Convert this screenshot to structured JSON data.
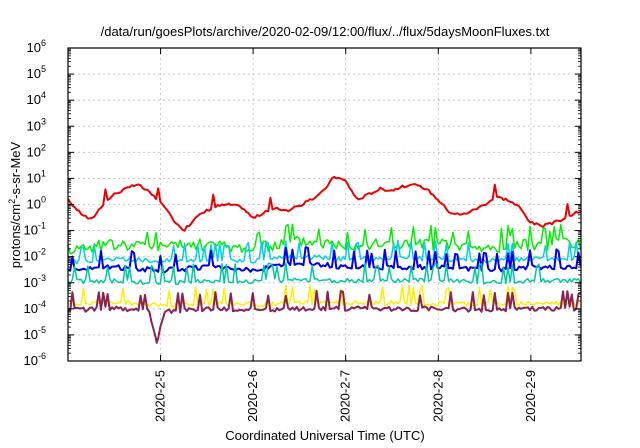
{
  "chart_data": {
    "type": "line",
    "title": "/data/run/goesPlots/archive/2020-02-09/12:00/flux/../flux/5daysMoonFluxes.txt",
    "xlabel": "Coordinated Universal Time (UTC)",
    "ylabel": "protons/cm²-s-sr-MeV",
    "ylabel_main": "protons/cm",
    "ylabel_sup": "2",
    "ylabel_rest": "-s-sr-MeV",
    "y_scale": "log",
    "ylim": [
      1e-06,
      1000000.0
    ],
    "xlim": [
      "2020-02-04 00:00",
      "2020-02-09 13:00"
    ],
    "grid": true,
    "x_ticks": [
      "2020-2-5",
      "2020-2-6",
      "2020-2-7",
      "2020-2-8",
      "2020-2-9"
    ],
    "y_ticks": [
      {
        "base": "10",
        "exp": "-6"
      },
      {
        "base": "10",
        "exp": "-5"
      },
      {
        "base": "10",
        "exp": "-4"
      },
      {
        "base": "10",
        "exp": "-3"
      },
      {
        "base": "10",
        "exp": "-2"
      },
      {
        "base": "10",
        "exp": "-1"
      },
      {
        "base": "10",
        "exp": "0"
      },
      {
        "base": "10",
        "exp": "1"
      },
      {
        "base": "10",
        "exp": "2"
      },
      {
        "base": "10",
        "exp": "3"
      },
      {
        "base": "10",
        "exp": "4"
      },
      {
        "base": "10",
        "exp": "5"
      },
      {
        "base": "10",
        "exp": "6"
      }
    ],
    "series": [
      {
        "color": "#ee0000",
        "width": 2.0,
        "points": [
          [
            "2020-02-04 00:00",
            1.5
          ],
          [
            "2020-02-04 03:00",
            0.5
          ],
          [
            "2020-02-04 06:00",
            0.25
          ],
          [
            "2020-02-04 09:00",
            1.0
          ],
          [
            "2020-02-04 12:00",
            2.5
          ],
          [
            "2020-02-04 15:00",
            4.0
          ],
          [
            "2020-02-04 18:00",
            6.0
          ],
          [
            "2020-02-04 21:00",
            3.0
          ],
          [
            "2020-02-05 00:00",
            1.2
          ],
          [
            "2020-02-05 03:00",
            0.3
          ],
          [
            "2020-02-05 06:00",
            0.1
          ],
          [
            "2020-02-05 09:00",
            0.3
          ],
          [
            "2020-02-05 12:00",
            0.6
          ],
          [
            "2020-02-05 15:00",
            0.9
          ],
          [
            "2020-02-05 18:00",
            1.0
          ],
          [
            "2020-02-05 21:00",
            0.8
          ],
          [
            "2020-02-06 00:00",
            0.3
          ],
          [
            "2020-02-06 03:00",
            0.5
          ],
          [
            "2020-02-06 06:00",
            0.7
          ],
          [
            "2020-02-06 09:00",
            0.6
          ],
          [
            "2020-02-06 12:00",
            0.9
          ],
          [
            "2020-02-06 15:00",
            1.5
          ],
          [
            "2020-02-06 18:00",
            3.0
          ],
          [
            "2020-02-06 21:00",
            12.0
          ],
          [
            "2020-02-07 00:00",
            8.0
          ],
          [
            "2020-02-07 03:00",
            1.5
          ],
          [
            "2020-02-07 06:00",
            2.5
          ],
          [
            "2020-02-07 09:00",
            4.0
          ],
          [
            "2020-02-07 12:00",
            3.5
          ],
          [
            "2020-02-07 15:00",
            5.0
          ],
          [
            "2020-02-07 18:00",
            5.5
          ],
          [
            "2020-02-07 21:00",
            4.0
          ],
          [
            "2020-02-08 00:00",
            1.5
          ],
          [
            "2020-02-08 03:00",
            0.5
          ],
          [
            "2020-02-08 06:00",
            0.4
          ],
          [
            "2020-02-08 09:00",
            0.6
          ],
          [
            "2020-02-08 12:00",
            1.0
          ],
          [
            "2020-02-08 15:00",
            2.0
          ],
          [
            "2020-02-08 18:00",
            1.5
          ],
          [
            "2020-02-08 21:00",
            0.8
          ],
          [
            "2020-02-09 00:00",
            0.2
          ],
          [
            "2020-02-09 03:00",
            0.15
          ],
          [
            "2020-02-09 06:00",
            0.2
          ],
          [
            "2020-02-09 09:00",
            0.3
          ],
          [
            "2020-02-09 12:00",
            0.5
          ]
        ]
      },
      {
        "color": "#00ee00",
        "width": 1.5,
        "points": [
          [
            "2020-02-04 00:00",
            0.02
          ],
          [
            "2020-02-04 12:00",
            0.03
          ],
          [
            "2020-02-05 00:00",
            0.025
          ],
          [
            "2020-02-05 12:00",
            0.03
          ],
          [
            "2020-02-06 00:00",
            0.02
          ],
          [
            "2020-02-06 12:00",
            0.04
          ],
          [
            "2020-02-07 00:00",
            0.03
          ],
          [
            "2020-02-07 12:00",
            0.03
          ],
          [
            "2020-02-08 00:00",
            0.03
          ],
          [
            "2020-02-08 12:00",
            0.02
          ],
          [
            "2020-02-09 00:00",
            0.03
          ],
          [
            "2020-02-09 12:00",
            0.03
          ]
        ]
      },
      {
        "color": "#00cfe8",
        "width": 1.5,
        "points": [
          [
            "2020-02-04 00:00",
            0.006
          ],
          [
            "2020-02-04 12:00",
            0.008
          ],
          [
            "2020-02-05 00:00",
            0.007
          ],
          [
            "2020-02-05 12:00",
            0.008
          ],
          [
            "2020-02-06 00:00",
            0.007
          ],
          [
            "2020-02-06 12:00",
            0.01
          ],
          [
            "2020-02-07 00:00",
            0.008
          ],
          [
            "2020-02-07 12:00",
            0.009
          ],
          [
            "2020-02-08 00:00",
            0.008
          ],
          [
            "2020-02-08 12:00",
            0.007
          ],
          [
            "2020-02-09 00:00",
            0.008
          ],
          [
            "2020-02-09 12:00",
            0.008
          ]
        ]
      },
      {
        "color": "#0000ee",
        "width": 2.0,
        "points": [
          [
            "2020-02-04 00:00",
            0.003
          ],
          [
            "2020-02-04 12:00",
            0.004
          ],
          [
            "2020-02-05 00:00",
            0.003
          ],
          [
            "2020-02-05 12:00",
            0.004
          ],
          [
            "2020-02-06 00:00",
            0.003
          ],
          [
            "2020-02-06 12:00",
            0.006
          ],
          [
            "2020-02-07 00:00",
            0.004
          ],
          [
            "2020-02-07 12:00",
            0.004
          ],
          [
            "2020-02-08 00:00",
            0.004
          ],
          [
            "2020-02-08 12:00",
            0.003
          ],
          [
            "2020-02-09 00:00",
            0.004
          ],
          [
            "2020-02-09 12:00",
            0.004
          ]
        ]
      },
      {
        "color": "#00c8a0",
        "width": 1.5,
        "points": [
          [
            "2020-02-04 00:00",
            0.0011
          ],
          [
            "2020-02-04 12:00",
            0.0012
          ],
          [
            "2020-02-05 00:00",
            0.001
          ],
          [
            "2020-02-05 12:00",
            0.0012
          ],
          [
            "2020-02-06 00:00",
            0.0011
          ],
          [
            "2020-02-06 12:00",
            0.0013
          ],
          [
            "2020-02-07 00:00",
            0.0012
          ],
          [
            "2020-02-07 12:00",
            0.0012
          ],
          [
            "2020-02-08 00:00",
            0.0012
          ],
          [
            "2020-02-08 12:00",
            0.0011
          ],
          [
            "2020-02-09 00:00",
            0.0012
          ],
          [
            "2020-02-09 12:00",
            0.0012
          ]
        ]
      },
      {
        "color": "#ffee00",
        "width": 1.5,
        "points": [
          [
            "2020-02-04 00:00",
            0.00015
          ],
          [
            "2020-02-04 12:00",
            0.00018
          ],
          [
            "2020-02-05 00:00",
            0.00014
          ],
          [
            "2020-02-05 12:00",
            0.00016
          ],
          [
            "2020-02-06 00:00",
            0.00015
          ],
          [
            "2020-02-06 12:00",
            0.00017
          ],
          [
            "2020-02-07 00:00",
            0.00016
          ],
          [
            "2020-02-07 12:00",
            0.00017
          ],
          [
            "2020-02-08 00:00",
            0.00016
          ],
          [
            "2020-02-08 12:00",
            0.00015
          ],
          [
            "2020-02-09 00:00",
            0.00016
          ],
          [
            "2020-02-09 12:00",
            0.00016
          ]
        ]
      },
      {
        "color": "#8b2252",
        "width": 2.0,
        "points": [
          [
            "2020-02-04 00:00",
            9e-05
          ],
          [
            "2020-02-04 12:00",
            0.0001
          ],
          [
            "2020-02-04 21:00",
            8e-05
          ],
          [
            "2020-02-04 23:00",
            5e-06
          ],
          [
            "2020-02-05 01:00",
            8e-05
          ],
          [
            "2020-02-05 12:00",
            0.0001
          ],
          [
            "2020-02-06 00:00",
            9e-05
          ],
          [
            "2020-02-06 12:00",
            0.0001
          ],
          [
            "2020-02-07 00:00",
            0.0001
          ],
          [
            "2020-02-07 12:00",
            0.0001
          ],
          [
            "2020-02-08 00:00",
            0.0001
          ],
          [
            "2020-02-08 12:00",
            9e-05
          ],
          [
            "2020-02-09 00:00",
            0.0001
          ],
          [
            "2020-02-09 12:00",
            0.0001
          ]
        ]
      }
    ]
  }
}
